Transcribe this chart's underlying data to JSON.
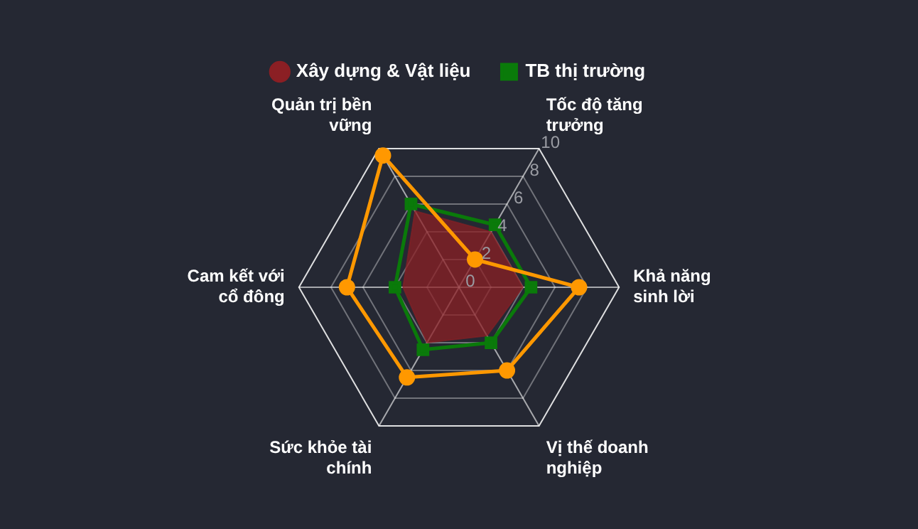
{
  "chart_data": {
    "type": "radar",
    "categories": [
      "Tốc độ tăng trưởng",
      "Khả năng sinh lời",
      "Vị thế doanh nghiệp",
      "Sức khỏe tài chính",
      "Cam kết với cổ đông",
      "Quản trị bền vững"
    ],
    "ylim": [
      0,
      10
    ],
    "yticks": [
      0,
      2,
      4,
      6,
      8,
      10
    ],
    "grid": true,
    "legend": "top",
    "series": [
      {
        "color": "#ff9800",
        "marker": "circle",
        "values": [
          2,
          7.5,
          6,
          6.5,
          7,
          9.5
        ]
      },
      {
        "name": "Xây dựng & Vật liệu",
        "type": "area",
        "color": "#8b1f24",
        "marker": "none",
        "values": [
          4,
          4,
          3.5,
          4,
          3.5,
          5.5
        ]
      },
      {
        "name": "TB thị trường",
        "color": "#0a7a0a",
        "marker": "square",
        "values": [
          4.5,
          4.5,
          4,
          4.5,
          4,
          6
        ]
      }
    ]
  }
}
